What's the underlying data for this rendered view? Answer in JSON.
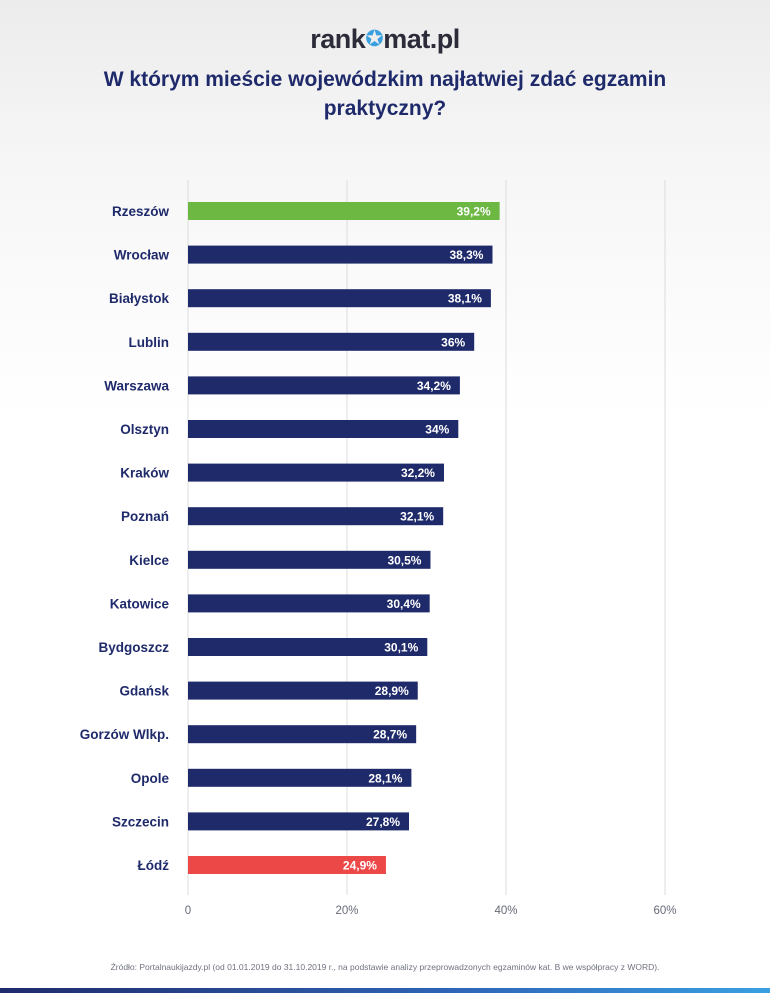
{
  "logo": {
    "text_left": "rank",
    "text_right": "mat.pl",
    "icon": "star-icon"
  },
  "title": "W którym mieście wojewódzkim najłatwiej zdać egzamin praktyczny?",
  "source": "Źródło: Portalnaukijazdy.pl (od 01.01.2019 do 31.10.2019 r., na podstawie analizy przeprowadzonych egzaminów kat. B we współpracy z WORD).",
  "colors": {
    "default": "#1f2a6b",
    "highlight_top": "#6cb843",
    "highlight_bottom": "#ec4848",
    "grid": "#dcdcdc"
  },
  "chart_data": {
    "type": "bar",
    "orientation": "horizontal",
    "categories": [
      "Rzeszów",
      "Wrocław",
      "Białystok",
      "Lublin",
      "Warszawa",
      "Olsztyn",
      "Kraków",
      "Poznań",
      "Kielce",
      "Katowice",
      "Bydgoszcz",
      "Gdańsk",
      "Gorzów Wlkp.",
      "Opole",
      "Szczecin",
      "Łódź"
    ],
    "values": [
      39.2,
      38.3,
      38.1,
      36,
      34.2,
      34,
      32.2,
      32.1,
      30.5,
      30.4,
      30.1,
      28.9,
      28.7,
      28.1,
      27.8,
      24.9
    ],
    "value_labels": [
      "39,2%",
      "38,3%",
      "38,1%",
      "36%",
      "34,2%",
      "34%",
      "32,2%",
      "32,1%",
      "30,5%",
      "30,4%",
      "30,1%",
      "28,9%",
      "28,7%",
      "28,1%",
      "27,8%",
      "24,9%"
    ],
    "xlim": [
      0,
      60
    ],
    "xticks": [
      0,
      20,
      40,
      60
    ],
    "xtick_labels": [
      "0",
      "20%",
      "40%",
      "60%"
    ],
    "grid": true,
    "highlight": {
      "Rzeszów": "highlight_top",
      "Łódź": "highlight_bottom"
    }
  }
}
